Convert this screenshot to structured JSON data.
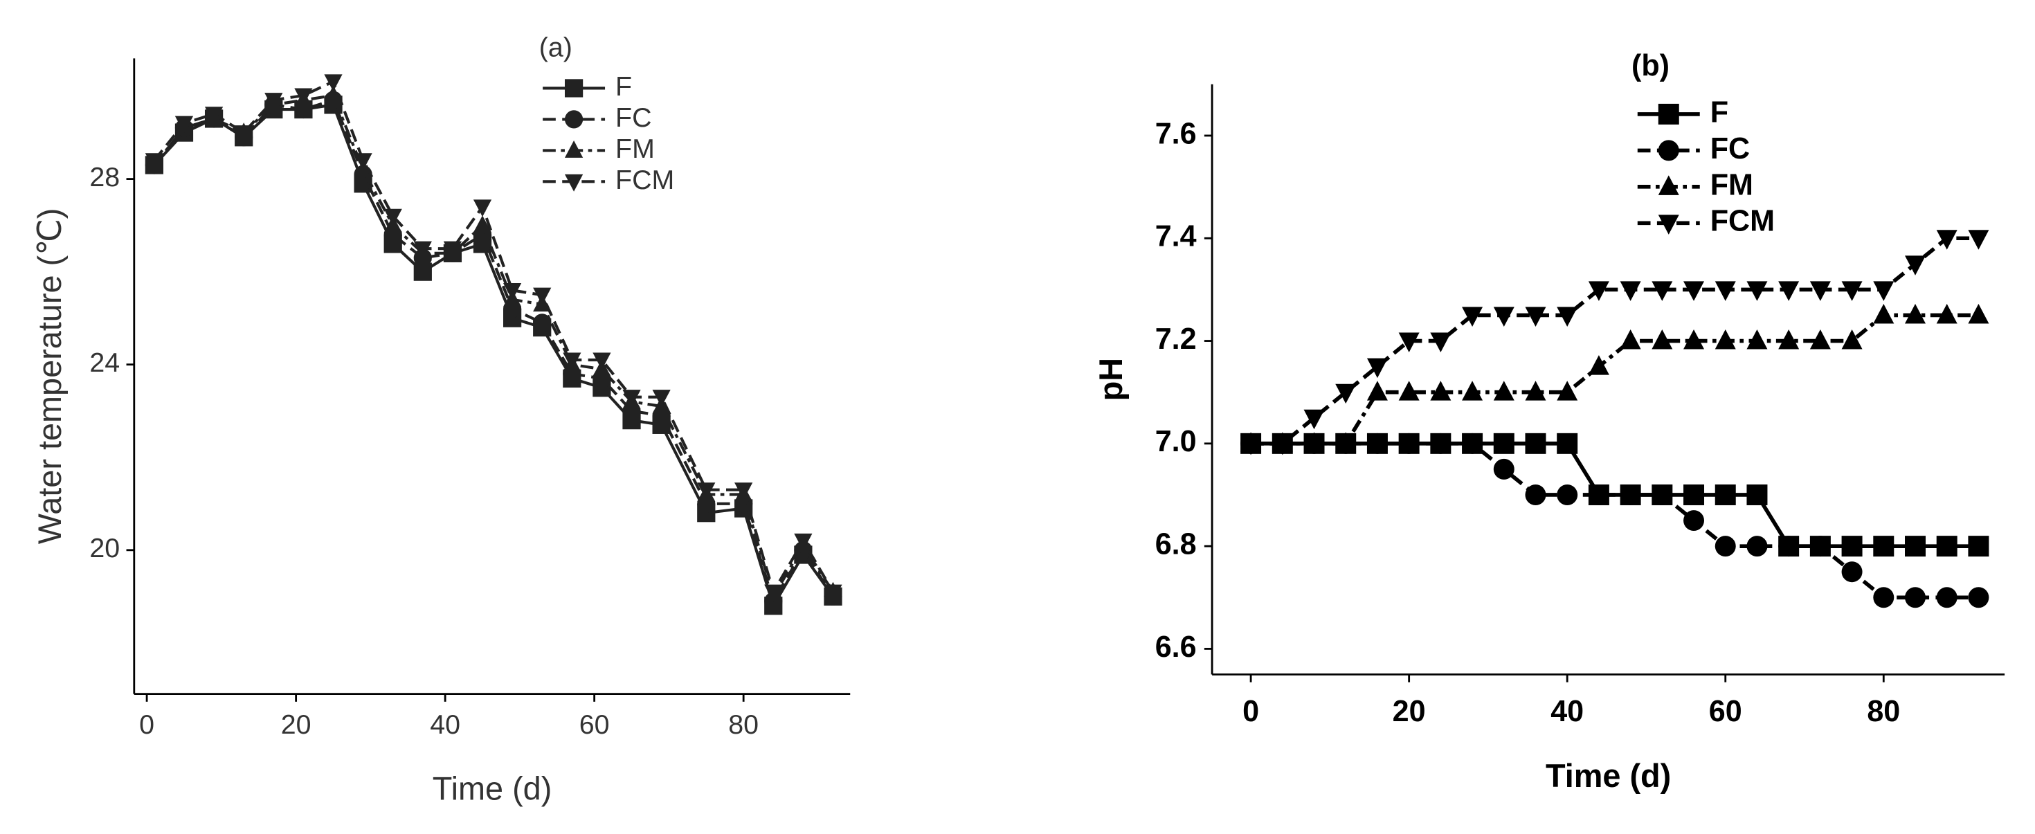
{
  "chart_data": [
    {
      "type": "line",
      "label": "(a)",
      "y_label": "Water temperature (℃)",
      "x_label": "Time (d)",
      "x": [
        1,
        5,
        9,
        13,
        17,
        21,
        25,
        29,
        33,
        37,
        41,
        45,
        49,
        53,
        57,
        61,
        65,
        69,
        75,
        80,
        84,
        88,
        92
      ],
      "xlim": [
        -1.7,
        94.3
      ],
      "ylim": [
        16.9,
        30.6
      ],
      "xticks": [
        0,
        20,
        40,
        60,
        80
      ],
      "yticks": [
        20,
        24,
        28
      ],
      "series": [
        {
          "name": "F",
          "color": "#222222",
          "marker": "square",
          "dash": "solid",
          "values": [
            28.3,
            29.0,
            29.3,
            28.9,
            29.5,
            29.5,
            29.6,
            27.9,
            26.6,
            26.0,
            26.4,
            26.6,
            25.0,
            24.8,
            23.7,
            23.5,
            22.8,
            22.7,
            20.8,
            20.9,
            18.8,
            19.9,
            19.0
          ]
        },
        {
          "name": "FC",
          "color": "#222222",
          "marker": "circle",
          "dash": "dash",
          "values": [
            28.3,
            29.1,
            29.3,
            28.9,
            29.6,
            29.5,
            29.7,
            28.1,
            26.8,
            26.3,
            26.4,
            26.8,
            25.2,
            24.9,
            23.8,
            23.7,
            23.0,
            22.9,
            21.0,
            21.0,
            18.9,
            20.0,
            19.0
          ]
        },
        {
          "name": "FM",
          "color": "#222222",
          "marker": "triangle-up",
          "dash": "dashdot",
          "values": [
            28.3,
            29.1,
            29.3,
            29.0,
            29.6,
            29.7,
            29.8,
            28.2,
            27.0,
            26.4,
            26.4,
            27.0,
            25.4,
            25.3,
            24.0,
            23.9,
            23.2,
            23.1,
            21.2,
            21.2,
            19.0,
            20.1,
            19.1
          ]
        },
        {
          "name": "FCM",
          "color": "#222222",
          "marker": "triangle-down",
          "dash": "dash",
          "values": [
            28.4,
            29.2,
            29.4,
            29.0,
            29.7,
            29.8,
            30.1,
            28.4,
            27.2,
            26.5,
            26.5,
            27.4,
            25.6,
            25.5,
            24.1,
            24.1,
            23.3,
            23.3,
            21.3,
            21.3,
            19.1,
            20.2,
            19.1
          ]
        }
      ]
    },
    {
      "type": "line",
      "label": "(b)",
      "y_label": "pH",
      "x_label": "Time (d)",
      "x": [
        0,
        4,
        8,
        12,
        16,
        20,
        24,
        28,
        32,
        36,
        40,
        44,
        48,
        52,
        56,
        60,
        64,
        68,
        72,
        76,
        80,
        84,
        88,
        92
      ],
      "xlim": [
        -4.9,
        95.3
      ],
      "ylim": [
        6.55,
        7.7
      ],
      "xticks": [
        0,
        20,
        40,
        60,
        80
      ],
      "yticks": [
        {
          "value": 6.6,
          "label": "6.6"
        },
        {
          "value": 6.8,
          "label": "6.8"
        },
        {
          "value": 7.0,
          "label": "7.0"
        },
        {
          "value": 7.2,
          "label": "7.2"
        },
        {
          "value": 7.4,
          "label": "7.4"
        },
        {
          "value": 7.6,
          "label": "7.6"
        }
      ],
      "series": [
        {
          "name": "F",
          "color": "#000000",
          "marker": "square",
          "dash": "solid",
          "values": [
            7.0,
            7.0,
            7.0,
            7.0,
            7.0,
            7.0,
            7.0,
            7.0,
            7.0,
            7.0,
            7.0,
            6.9,
            6.9,
            6.9,
            6.9,
            6.9,
            6.9,
            6.8,
            6.8,
            6.8,
            6.8,
            6.8,
            6.8,
            6.8
          ]
        },
        {
          "name": "FC",
          "color": "#000000",
          "marker": "circle",
          "dash": "dash",
          "values": [
            7.0,
            7.0,
            7.0,
            7.0,
            7.0,
            7.0,
            7.0,
            7.0,
            6.95,
            6.9,
            6.9,
            6.9,
            6.9,
            6.9,
            6.85,
            6.8,
            6.8,
            6.8,
            6.8,
            6.75,
            6.7,
            6.7,
            6.7,
            6.7
          ]
        },
        {
          "name": "FM",
          "color": "#000000",
          "marker": "triangle-up",
          "dash": "dashdot",
          "values": [
            7.0,
            7.0,
            7.0,
            7.0,
            7.1,
            7.1,
            7.1,
            7.1,
            7.1,
            7.1,
            7.1,
            7.15,
            7.2,
            7.2,
            7.2,
            7.2,
            7.2,
            7.2,
            7.2,
            7.2,
            7.25,
            7.25,
            7.25,
            7.25
          ]
        },
        {
          "name": "FCM",
          "color": "#000000",
          "marker": "triangle-down",
          "dash": "dash",
          "values": [
            7.0,
            7.0,
            7.05,
            7.1,
            7.15,
            7.2,
            7.2,
            7.25,
            7.25,
            7.25,
            7.25,
            7.3,
            7.3,
            7.3,
            7.3,
            7.3,
            7.3,
            7.3,
            7.3,
            7.3,
            7.3,
            7.35,
            7.4,
            7.4
          ]
        }
      ]
    }
  ]
}
